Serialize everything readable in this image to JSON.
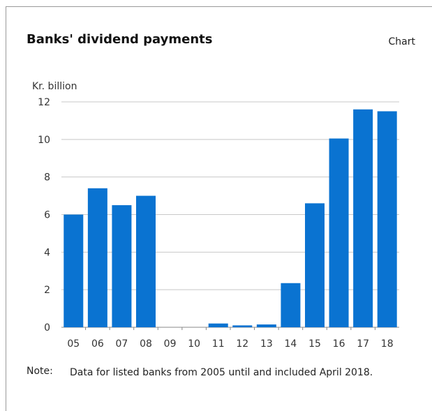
{
  "header": {
    "title": "Banks' dividend payments",
    "tag": "Chart"
  },
  "chart_data": {
    "type": "bar",
    "title": "Banks' dividend payments",
    "ylabel": "Kr. billion",
    "xlabel": "",
    "categories": [
      "05",
      "06",
      "07",
      "08",
      "09",
      "10",
      "11",
      "12",
      "13",
      "14",
      "15",
      "16",
      "17",
      "18"
    ],
    "values": [
      6.0,
      7.4,
      6.5,
      7.0,
      0.0,
      0.0,
      0.2,
      0.1,
      0.15,
      2.35,
      6.6,
      10.05,
      11.6,
      11.5
    ],
    "ylim": [
      0,
      12
    ],
    "yticks": [
      "0",
      "2",
      "4",
      "6",
      "8",
      "10",
      "12"
    ],
    "grid": true,
    "legend": "none",
    "bar_color": "#0a73d1"
  },
  "note": {
    "label": "Note:",
    "text": "Data for listed banks from 2005 until and included April 2018."
  }
}
